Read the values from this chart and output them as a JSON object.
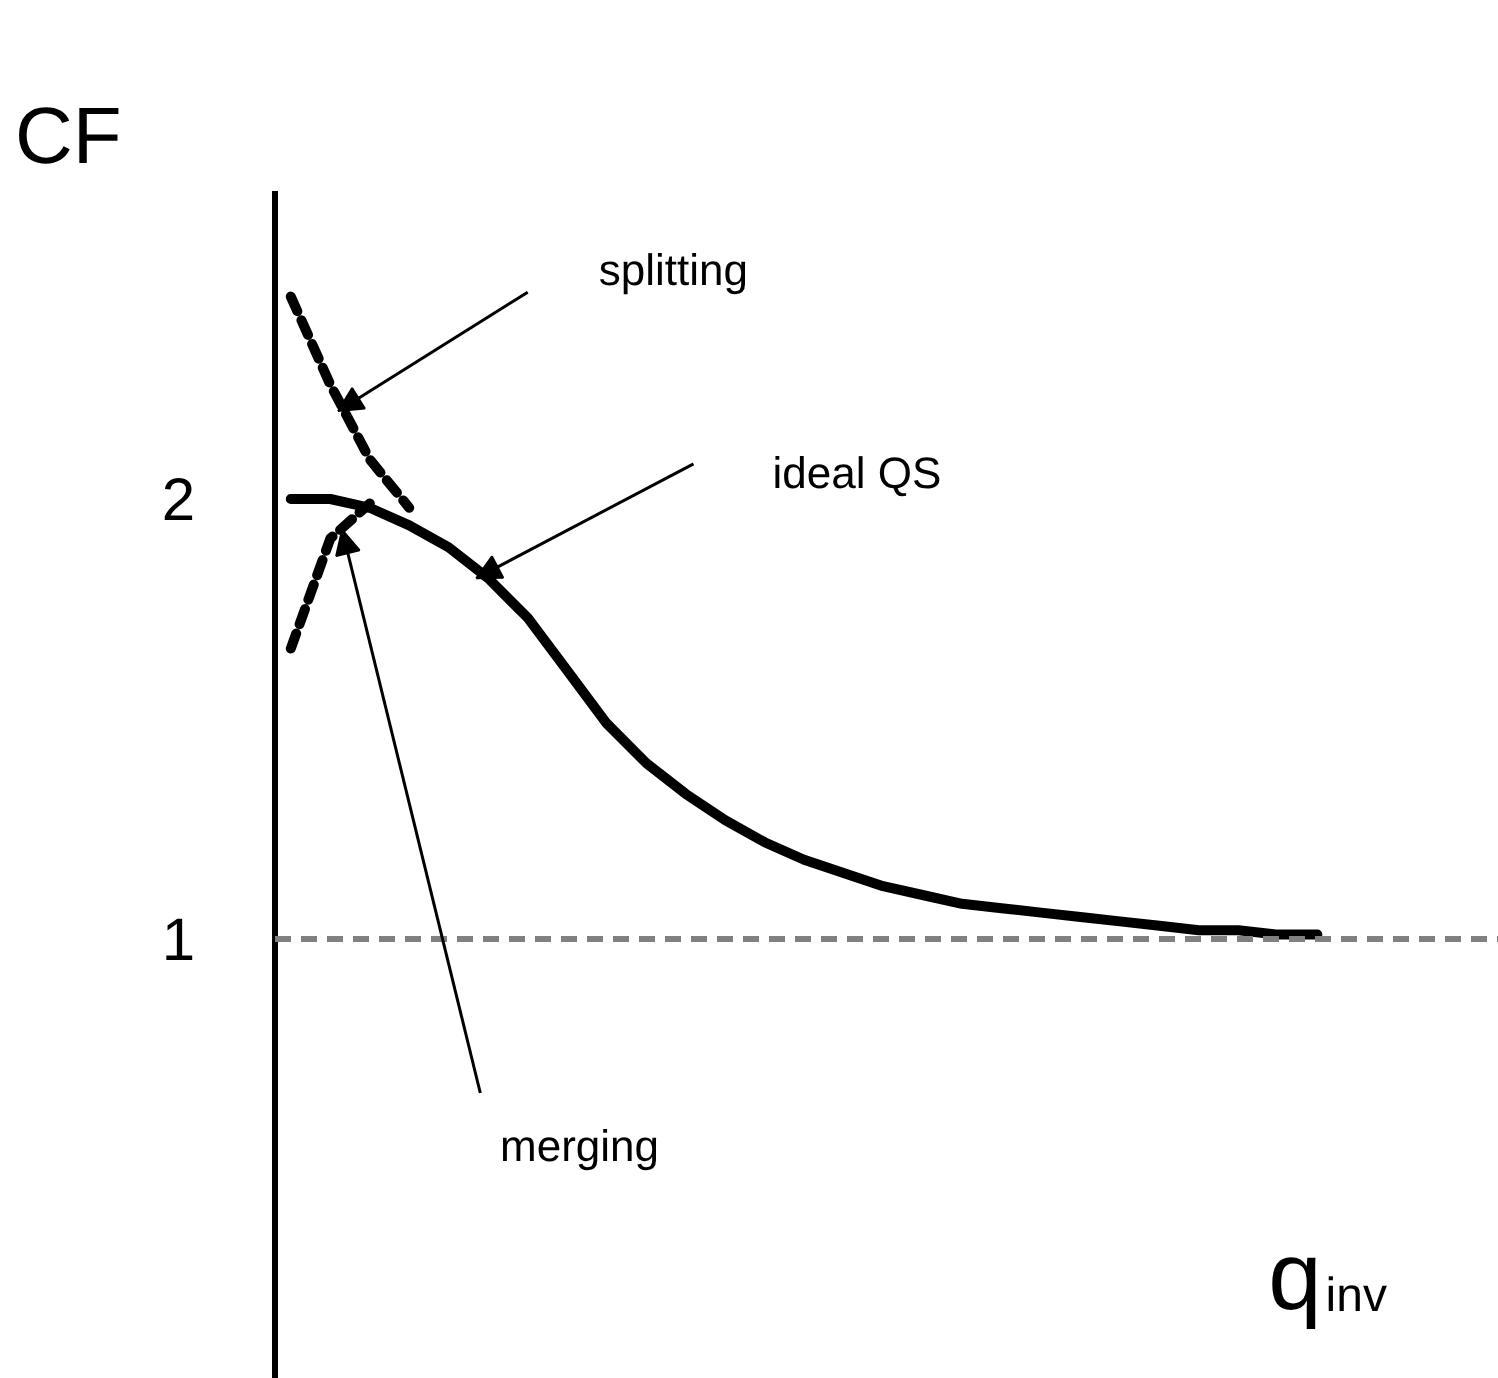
{
  "chart_data": {
    "type": "line",
    "ylabel": "CF",
    "xlabel": "q$_{inv}$",
    "ylim": [
      0,
      2.7
    ],
    "yticks": [
      1,
      2
    ],
    "tick_labels": "y",
    "grid": false,
    "categories": [
      null,
      null,
      null,
      null,
      null,
      null,
      null,
      null,
      null,
      null,
      null,
      null,
      null,
      null,
      null,
      null,
      null,
      null,
      null,
      null,
      null,
      null,
      null,
      null,
      null,
      null,
      null
    ],
    "series": [
      {
        "color": "#000000",
        "line_style": "solid",
        "values": [
          2.0,
          2.0,
          1.98,
          1.94,
          1.89,
          1.82,
          1.73,
          1.61,
          1.49,
          1.4,
          1.33,
          1.27,
          1.22,
          1.18,
          1.15,
          1.12,
          1.1,
          1.08,
          1.07,
          1.06,
          1.05,
          1.04,
          1.03,
          1.02,
          1.02,
          1.01,
          1.01
        ]
      },
      {
        "color": "#000000",
        "line_style": "dashed",
        "values": [
          2.46,
          2.26,
          2.09,
          1.98,
          null,
          null,
          null,
          null,
          null,
          null,
          null,
          null,
          null,
          null,
          null,
          null,
          null,
          null,
          null,
          null,
          null,
          null,
          null,
          null,
          null,
          null,
          null
        ]
      },
      {
        "color": "#000000",
        "line_style": "dashed",
        "values": [
          1.66,
          1.91,
          1.99,
          null,
          null,
          null,
          null,
          null,
          null,
          null,
          null,
          null,
          null,
          null,
          null,
          null,
          null,
          null,
          null,
          null,
          null,
          null,
          null,
          null,
          null,
          null,
          null
        ]
      }
    ],
    "ref_lines": [
      {
        "axis": "y",
        "value": 1,
        "label": null,
        "color": "#808080",
        "line_style": "dashed"
      }
    ],
    "annotations": [
      "splitting",
      "ideal QS",
      "merging"
    ]
  }
}
